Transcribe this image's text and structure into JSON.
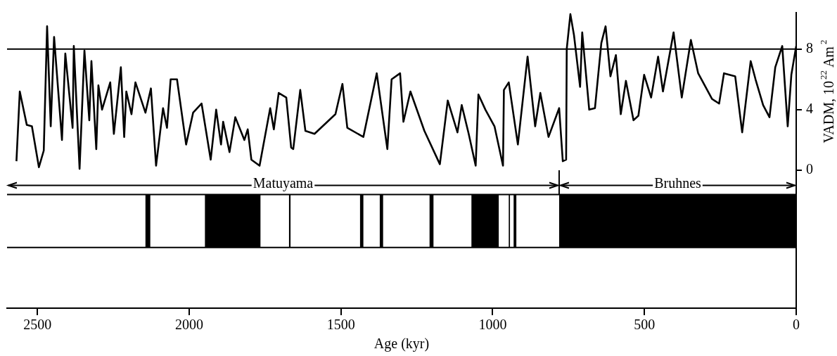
{
  "chart_data": {
    "type": "line",
    "xlabel": "Age (kyr)",
    "ylabel": "VADM, 10$^{22}$ Am$^{2}$",
    "x": [
      2569,
      2558,
      2535,
      2518,
      2495,
      2479,
      2468,
      2456,
      2445,
      2419,
      2408,
      2384,
      2380,
      2361,
      2345,
      2329,
      2322,
      2306,
      2299,
      2287,
      2260,
      2248,
      2225,
      2214,
      2207,
      2190,
      2177,
      2144,
      2126,
      2109,
      2086,
      2073,
      2061,
      2040,
      2010,
      1987,
      1959,
      1929,
      1911,
      1895,
      1888,
      1867,
      1848,
      1818,
      1807,
      1795,
      1768,
      1733,
      1721,
      1705,
      1680,
      1664,
      1657,
      1634,
      1617,
      1587,
      1518,
      1495,
      1479,
      1426,
      1382,
      1347,
      1333,
      1305,
      1294,
      1271,
      1225,
      1174,
      1148,
      1116,
      1102,
      1079,
      1056,
      1047,
      1024,
      994,
      966,
      963,
      947,
      917,
      885,
      860,
      843,
      816,
      781,
      769,
      758,
      756,
      744,
      732,
      712,
      705,
      682,
      663,
      642,
      628,
      612,
      594,
      578,
      561,
      536,
      520,
      501,
      478,
      455,
      439,
      404,
      377,
      347,
      323,
      277,
      254,
      238,
      201,
      178,
      150,
      134,
      109,
      88,
      69,
      46,
      28,
      16,
      0
    ],
    "series": [
      {
        "color": "#000000",
        "values": [
          0.6,
          5.2,
          3.0,
          2.9,
          0.2,
          1.3,
          9.5,
          2.9,
          8.8,
          2.0,
          7.7,
          2.8,
          8.2,
          0.1,
          7.9,
          3.3,
          7.2,
          1.4,
          5.6,
          4.0,
          5.8,
          2.4,
          6.8,
          2.2,
          5.2,
          3.7,
          5.8,
          3.8,
          5.4,
          0.3,
          4.1,
          2.8,
          6.0,
          6.0,
          1.7,
          3.8,
          4.4,
          0.7,
          4.0,
          1.7,
          3.2,
          1.2,
          3.5,
          2.0,
          2.7,
          0.7,
          0.3,
          4.1,
          2.7,
          5.1,
          4.8,
          1.5,
          1.4,
          5.3,
          2.6,
          2.4,
          3.7,
          5.7,
          2.8,
          2.2,
          6.4,
          1.4,
          6.0,
          6.4,
          3.2,
          5.2,
          2.6,
          0.4,
          4.6,
          2.5,
          4.3,
          2.4,
          0.3,
          5.0,
          4.0,
          2.9,
          0.3,
          5.3,
          5.8,
          1.7,
          7.5,
          2.9,
          5.1,
          2.2,
          4.1,
          0.6,
          0.7,
          8.0,
          10.3,
          8.9,
          5.5,
          9.1,
          4.0,
          4.1,
          8.4,
          9.5,
          6.2,
          7.6,
          3.7,
          5.9,
          3.3,
          3.6,
          6.3,
          4.8,
          7.5,
          5.2,
          9.1,
          4.8,
          8.6,
          6.4,
          4.7,
          4.4,
          6.4,
          6.2,
          2.5,
          7.2,
          6.0,
          4.3,
          3.5,
          6.8,
          8.2,
          2.9,
          6.3,
          8.2
        ]
      }
    ],
    "xlim": [
      2600,
      0
    ],
    "xticks": [
      2500,
      2000,
      1500,
      1000,
      500,
      0
    ],
    "ylim": [
      -9.1,
      10.4
    ],
    "yticks": [
      0,
      4,
      8
    ],
    "ref_lines": [
      {
        "axis": "y",
        "value": 8
      },
      {
        "axis": "y",
        "value": -1.6
      },
      {
        "axis": "y",
        "value": -5.1
      },
      {
        "axis": "x",
        "value": 781
      }
    ],
    "annotations": [
      {
        "text": "Matuyama",
        "x": 781,
        "y": -1.0
      },
      {
        "text": "Bruhnes",
        "x": 781,
        "y": -1.0
      }
    ],
    "bands": [
      {
        "axis": "x",
        "from": 2144,
        "to": 2128,
        "color": "#000000"
      },
      {
        "axis": "x",
        "from": 1948,
        "to": 1765,
        "color": "#000000"
      },
      {
        "axis": "x",
        "from": 1671,
        "to": 1666,
        "color": "#000000"
      },
      {
        "axis": "x",
        "from": 1437,
        "to": 1426,
        "color": "#000000"
      },
      {
        "axis": "x",
        "from": 1372,
        "to": 1361,
        "color": "#000000"
      },
      {
        "axis": "x",
        "from": 1208,
        "to": 1195,
        "color": "#000000"
      },
      {
        "axis": "x",
        "from": 1070,
        "to": 980,
        "color": "#000000"
      },
      {
        "axis": "x",
        "from": 947,
        "to": 943,
        "color": "#000000"
      },
      {
        "axis": "x",
        "from": 931,
        "to": 922,
        "color": "#000000"
      },
      {
        "axis": "x",
        "from": 781,
        "to": 0,
        "color": "#000000"
      }
    ],
    "grid": false,
    "legend": false,
    "marker": "none",
    "line_style": "solid"
  }
}
